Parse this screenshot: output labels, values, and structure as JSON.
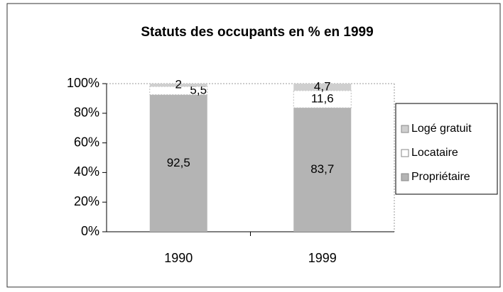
{
  "chart_data": {
    "type": "bar",
    "stacked": true,
    "title": "Statuts des occupants en % en 1999",
    "categories": [
      "1990",
      "1999"
    ],
    "series": [
      {
        "name": "Propriétaire",
        "color": "#b4b4b4",
        "values": [
          92.5,
          83.7
        ],
        "value_labels": [
          "92,5",
          "83,7"
        ]
      },
      {
        "name": "Locataire",
        "color": "#ffffff",
        "values": [
          5.5,
          11.6
        ],
        "value_labels": [
          "5,5",
          "11,6"
        ]
      },
      {
        "name": "Logé gratuit",
        "color": "#cfcfcf",
        "values": [
          2,
          4.7
        ],
        "value_labels": [
          "2",
          "4,7"
        ]
      }
    ],
    "ylim": [
      0,
      100
    ],
    "yticks": [
      {
        "value": 0,
        "label": "0%"
      },
      {
        "value": 20,
        "label": "20%"
      },
      {
        "value": 40,
        "label": "40%"
      },
      {
        "value": 60,
        "label": "60%"
      },
      {
        "value": 80,
        "label": "80%"
      },
      {
        "value": 100,
        "label": "100%"
      }
    ],
    "legend": "right"
  }
}
